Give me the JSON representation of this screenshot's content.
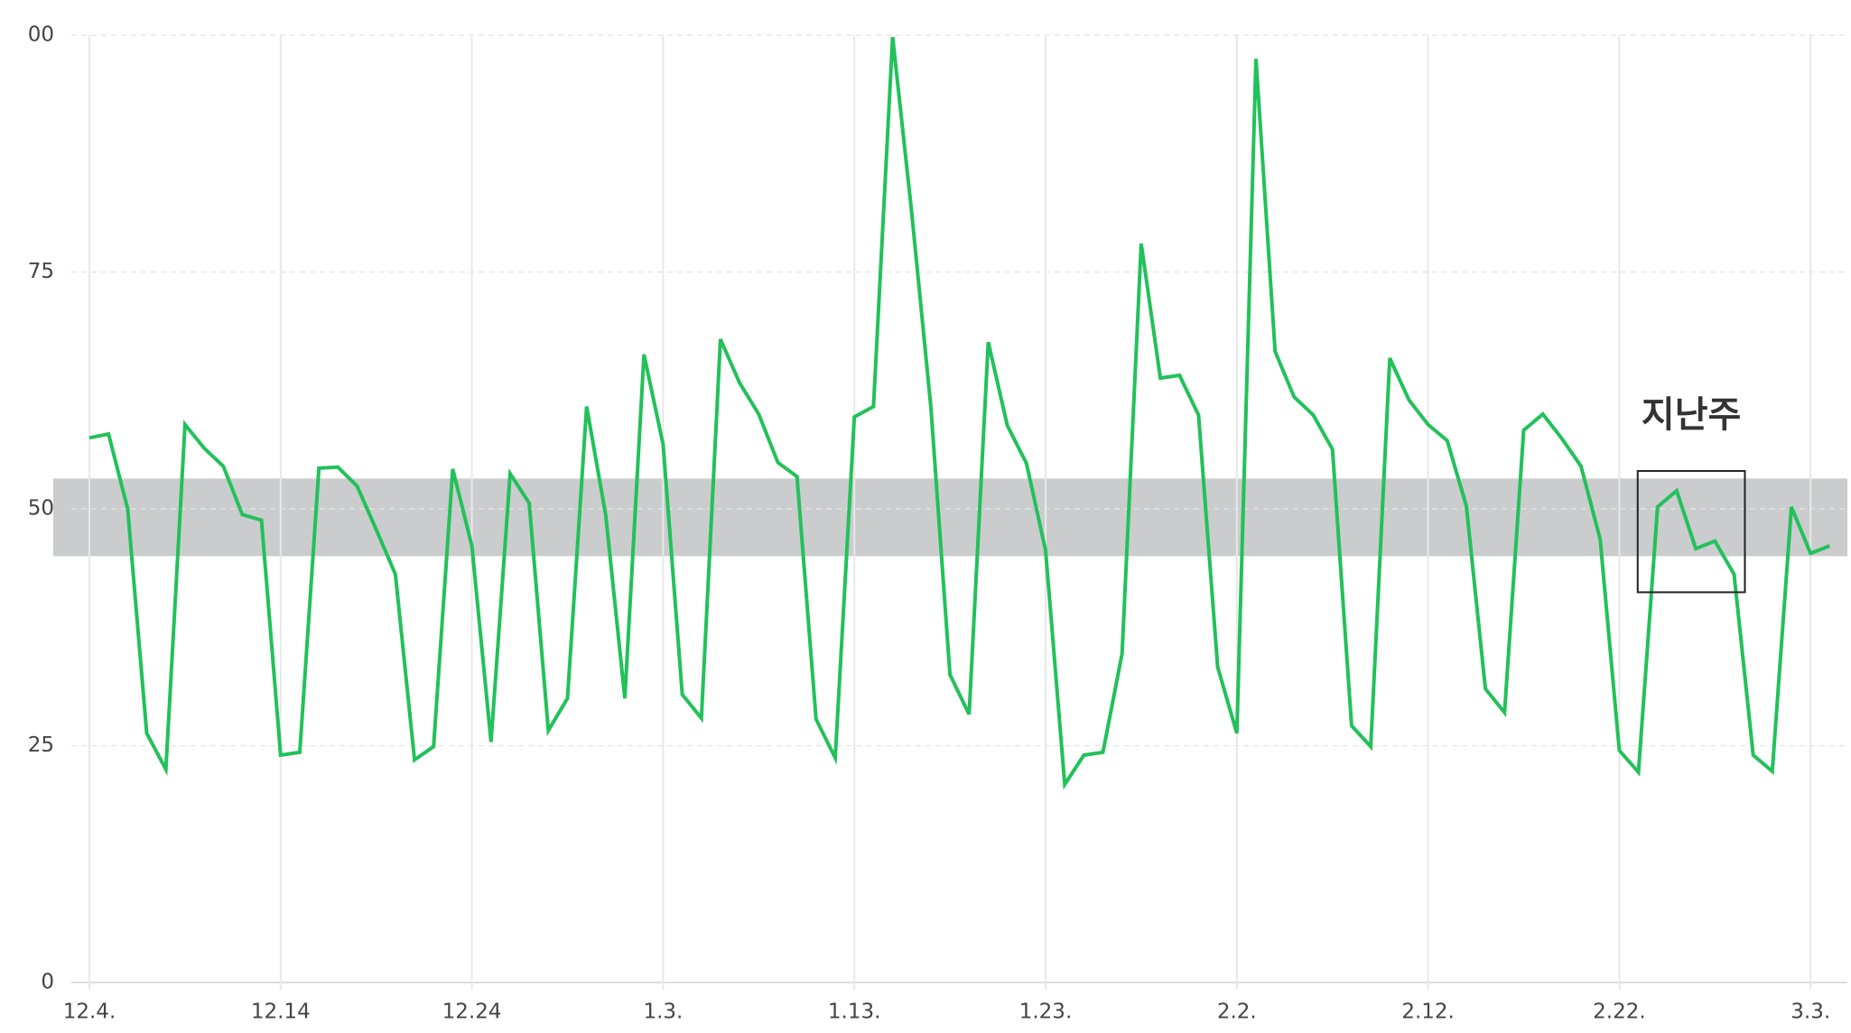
{
  "chart_data": {
    "type": "line",
    "categories": [
      "12.4.",
      null,
      null,
      null,
      null,
      null,
      null,
      null,
      null,
      null,
      "12.14",
      null,
      null,
      null,
      null,
      null,
      null,
      null,
      null,
      null,
      "12.24",
      null,
      null,
      null,
      null,
      null,
      null,
      null,
      null,
      null,
      "1.3.",
      null,
      null,
      null,
      null,
      null,
      null,
      null,
      null,
      null,
      "1.13.",
      null,
      null,
      null,
      null,
      null,
      null,
      null,
      null,
      null,
      "1.23.",
      null,
      null,
      null,
      null,
      null,
      null,
      null,
      null,
      null,
      "2.2.",
      null,
      null,
      null,
      null,
      null,
      null,
      null,
      null,
      null,
      "2.12.",
      null,
      null,
      null,
      null,
      null,
      null,
      null,
      null,
      null,
      "2.22.",
      null,
      null,
      null,
      null,
      null,
      null,
      null,
      null,
      null,
      "3.3.",
      null
    ],
    "series": [
      {
        "color": "#22c15a",
        "values": [
          57.5,
          57.9,
          50,
          26.3,
          22.5,
          58.9,
          56.4,
          54.5,
          49.4,
          48.8,
          24,
          24.3,
          54.3,
          54.4,
          52.4,
          47.8,
          43.1,
          23.5,
          24.9,
          54.2,
          46.1,
          25.4,
          53.7,
          50.6,
          26.6,
          30,
          60.8,
          49.3,
          30,
          66.3,
          56.8,
          30.4,
          27.9,
          67.9,
          63.3,
          60,
          54.9,
          53.4,
          27.8,
          23.7,
          59.7,
          60.8,
          99.8,
          81.3,
          60.8,
          32.5,
          28.3,
          67.6,
          58.8,
          54.8,
          45.6,
          20.9,
          24,
          24.3,
          34.7,
          78,
          63.8,
          64.1,
          59.9,
          33.3,
          26.3,
          97.5,
          66.6,
          61.8,
          59.9,
          56.3,
          27.1,
          24.9,
          65.9,
          61.5,
          58.9,
          57.2,
          50.3,
          31,
          28.5,
          58.3,
          60,
          57.4,
          54.5,
          46.8,
          24.5,
          22.2,
          50.2,
          51.9,
          45.8,
          46.6,
          43.1,
          24,
          22.3,
          50.2,
          45.3,
          46.1
        ]
      }
    ],
    "ylim": [
      0,
      100
    ],
    "yticks": [
      0,
      25,
      50,
      75,
      {
        "value": 100,
        "label": "00"
      }
    ],
    "grid": true,
    "band": {
      "from": 45,
      "to": 53.2,
      "color": "#c8c9cb"
    },
    "annotation": {
      "text": "지난주",
      "from": 82,
      "to": 86
    }
  }
}
